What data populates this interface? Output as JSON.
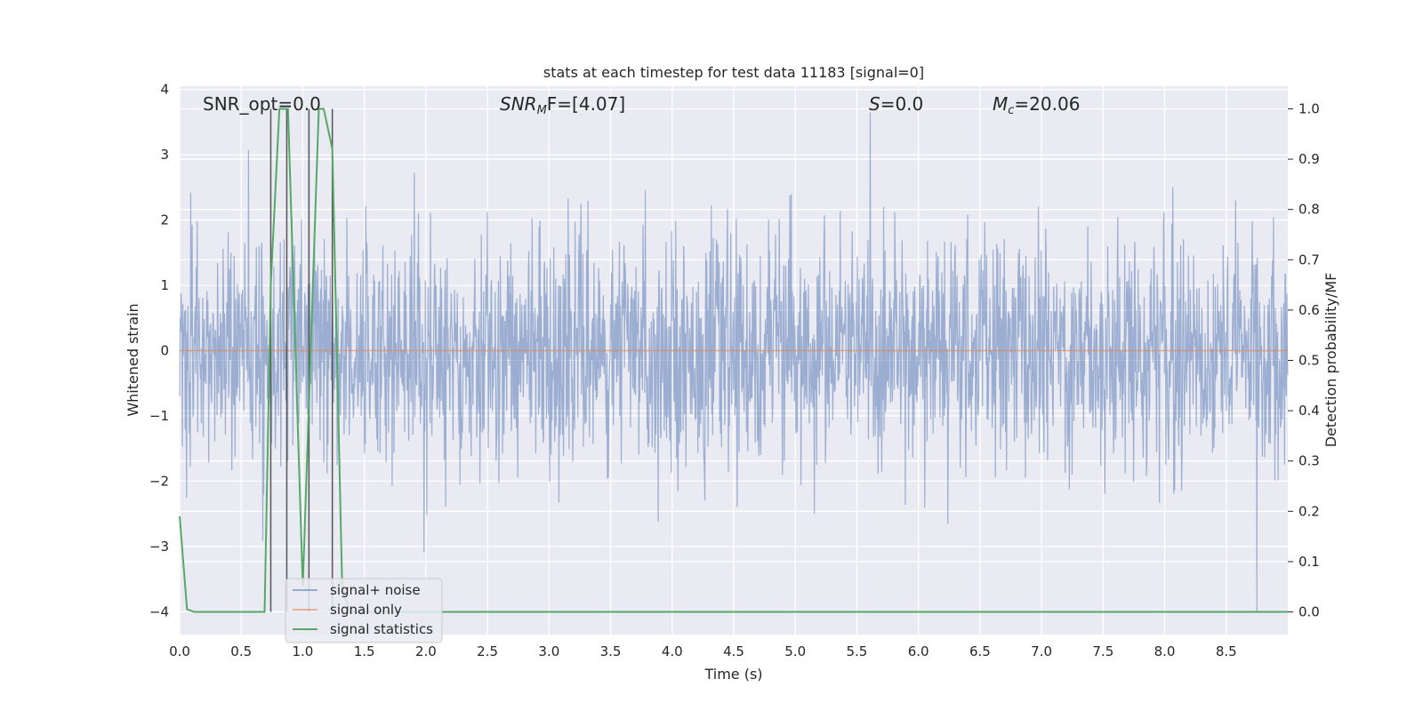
{
  "chart_data": {
    "type": "line",
    "title": "stats at each timestep for test data 11183 [signal=0]",
    "xlabel": "Time (s)",
    "ylabel": "Whitened strain",
    "y2label": "Detection probability/MF",
    "xlim": [
      0.0,
      9.0
    ],
    "ylim": [
      -4.35,
      4.05
    ],
    "y2lim": [
      -0.045,
      1.045
    ],
    "x_ticks": [
      "0.0",
      "0.5",
      "1.0",
      "1.5",
      "2.0",
      "2.5",
      "3.0",
      "3.5",
      "4.0",
      "4.5",
      "5.0",
      "5.5",
      "6.0",
      "6.5",
      "7.0",
      "7.5",
      "8.0",
      "8.5"
    ],
    "y_ticks": [
      "4",
      "3",
      "2",
      "1",
      "0",
      "−1",
      "−2",
      "−3",
      "−4"
    ],
    "y2_ticks": [
      "1.0",
      "0.9",
      "0.8",
      "0.7",
      "0.6",
      "0.5",
      "0.4",
      "0.3",
      "0.2",
      "0.1",
      "0.0"
    ],
    "grid": true,
    "legend_position": "lower-left",
    "series": [
      {
        "name": "signal+ noise",
        "color": "#4c72b0",
        "axis": "left",
        "noise_envelope": {
          "x_start": 0.0,
          "x_end": 9.0,
          "typical_amplitude": 1.8,
          "min": -4.0,
          "max": 3.65
        }
      },
      {
        "name": "signal only",
        "color": "#dd8452",
        "axis": "left",
        "x": [
          0.0,
          9.0
        ],
        "y": [
          0.0,
          0.0
        ]
      },
      {
        "name": "signal statistics",
        "color": "#55a868",
        "axis": "right",
        "x": [
          0.0,
          0.06,
          0.12,
          0.69,
          0.74,
          0.81,
          0.88,
          1.0,
          1.13,
          1.17,
          1.24,
          1.32,
          1.38,
          9.0
        ],
        "y": [
          0.19,
          0.005,
          0.0,
          0.0,
          0.65,
          1.0,
          1.0,
          0.05,
          1.0,
          1.0,
          0.92,
          0.05,
          0.0,
          0.0
        ]
      }
    ],
    "vlines_x": [
      0.74,
      0.87,
      1.05,
      1.24
    ],
    "annotations": [
      {
        "text": "SNR_opt=0.0"
      },
      {
        "text_main": "SNR",
        "text_sub": "M",
        "text_rest": "F=[4.07]"
      },
      {
        "text_main": "S",
        "text_rest": "=0.0"
      },
      {
        "text_main": "M",
        "text_sub": "c",
        "text_rest": "=20.06"
      }
    ]
  }
}
